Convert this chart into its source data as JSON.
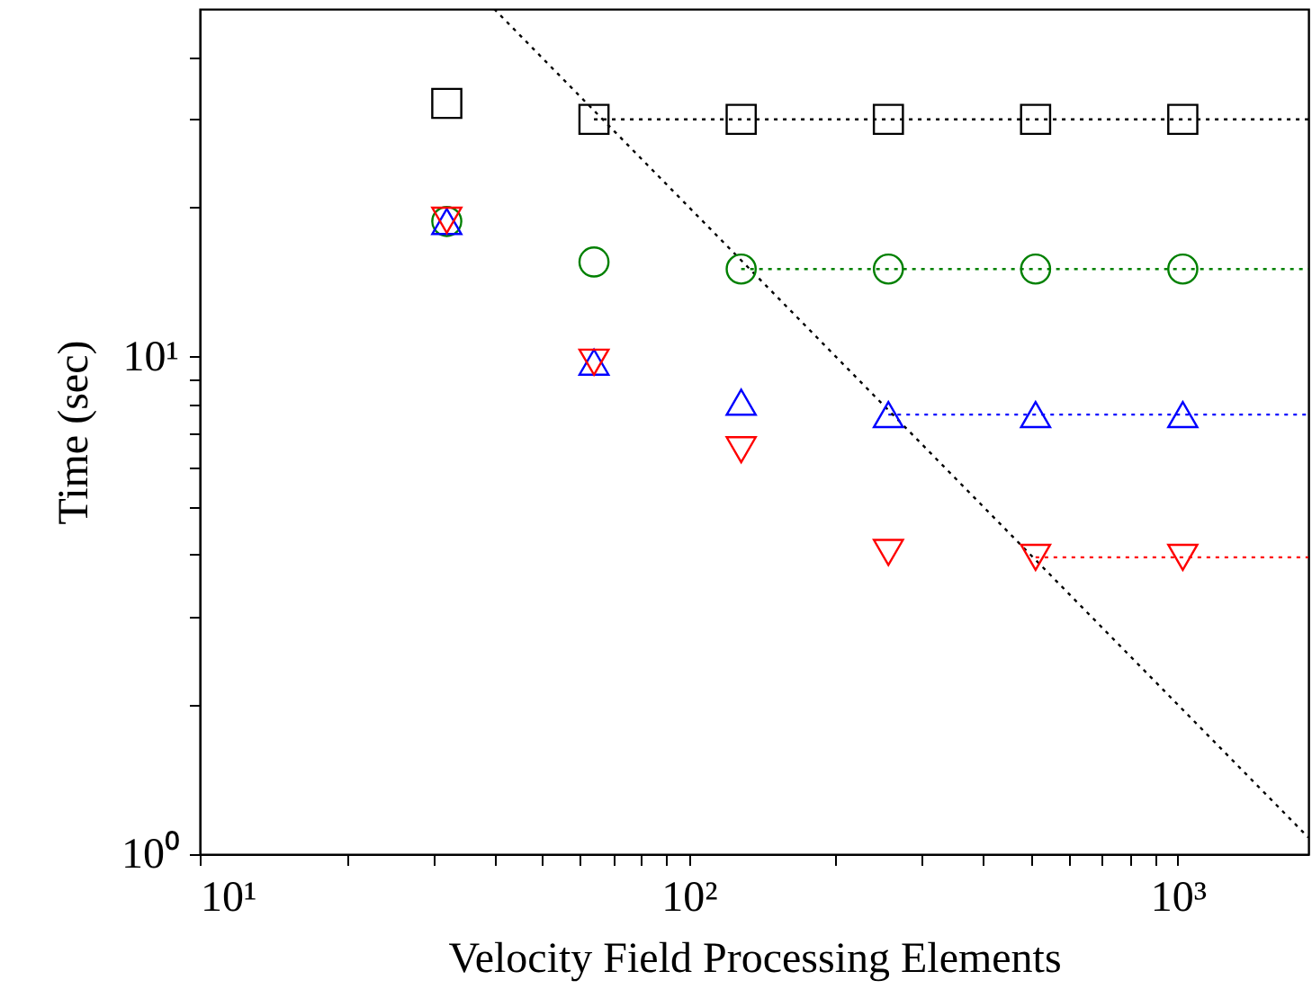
{
  "chart_data": {
    "type": "scatter",
    "xlabel": "Velocity Field Processing Elements",
    "ylabel": "Time (sec)",
    "log": "xy",
    "grid": false,
    "xlim": [
      10,
      1850
    ],
    "ylim": [
      1,
      50
    ],
    "xticks": [
      {
        "value": 10,
        "label": "10¹"
      },
      {
        "value": 20,
        "label": null
      },
      {
        "value": 30,
        "label": null
      },
      {
        "value": 40,
        "label": null
      },
      {
        "value": 50,
        "label": null
      },
      {
        "value": 60,
        "label": null
      },
      {
        "value": 70,
        "label": null
      },
      {
        "value": 80,
        "label": null
      },
      {
        "value": 90,
        "label": null
      },
      {
        "value": 100,
        "label": "10²"
      },
      {
        "value": 200,
        "label": null
      },
      {
        "value": 300,
        "label": null
      },
      {
        "value": 400,
        "label": null
      },
      {
        "value": 500,
        "label": null
      },
      {
        "value": 600,
        "label": null
      },
      {
        "value": 700,
        "label": null
      },
      {
        "value": 800,
        "label": null
      },
      {
        "value": 900,
        "label": null
      },
      {
        "value": 1000,
        "label": "10³"
      }
    ],
    "yticks": [
      {
        "value": 1,
        "label": "10⁰"
      },
      {
        "value": 2,
        "label": null
      },
      {
        "value": 3,
        "label": null
      },
      {
        "value": 4,
        "label": null
      },
      {
        "value": 5,
        "label": null
      },
      {
        "value": 6,
        "label": null
      },
      {
        "value": 7,
        "label": null
      },
      {
        "value": 8,
        "label": null
      },
      {
        "value": 9,
        "label": null
      },
      {
        "value": 10,
        "label": "10¹"
      },
      {
        "value": 20,
        "label": null
      },
      {
        "value": 30,
        "label": null
      },
      {
        "value": 40,
        "label": null
      }
    ],
    "series": [
      {
        "type": "line",
        "line_style": "dotted",
        "marker": "none",
        "color": "#000000",
        "x": [
          64,
          1850
        ],
        "values": [
          30,
          30
        ]
      },
      {
        "type": "line",
        "line_style": "dotted",
        "marker": "none",
        "color": "#008000",
        "x": [
          128,
          1850
        ],
        "values": [
          15,
          15
        ]
      },
      {
        "type": "line",
        "line_style": "dotted",
        "marker": "none",
        "color": "#0000ff",
        "x": [
          256,
          1850
        ],
        "values": [
          7.65,
          7.65
        ]
      },
      {
        "type": "line",
        "line_style": "dotted",
        "marker": "none",
        "color": "#ff0000",
        "x": [
          512,
          1850
        ],
        "values": [
          3.95,
          3.95
        ]
      },
      {
        "type": "line",
        "line_style": "dotted",
        "marker": "none",
        "color": "#000000",
        "x": [
          40,
          1850
        ],
        "values": [
          50,
          1.08
        ]
      },
      {
        "type": "scatter",
        "marker": "square",
        "color": "#000000",
        "x": [
          32,
          64,
          128,
          256,
          512,
          1024
        ],
        "values": [
          32.3,
          30,
          30,
          30,
          30,
          30
        ]
      },
      {
        "type": "scatter",
        "marker": "circle",
        "color": "#008000",
        "x": [
          32,
          64,
          128,
          256,
          512,
          1024
        ],
        "values": [
          18.7,
          15.5,
          15,
          15,
          15,
          15
        ]
      },
      {
        "type": "scatter",
        "marker": "triangle",
        "color": "#0000ff",
        "x": [
          32,
          64,
          128,
          256,
          512,
          1024
        ],
        "values": [
          18.7,
          9.75,
          8.1,
          7.65,
          7.65,
          7.65
        ]
      },
      {
        "type": "scatter",
        "marker": "triangle-down",
        "color": "#ff0000",
        "x": [
          32,
          64,
          128,
          256,
          512,
          1024
        ],
        "values": [
          18.8,
          9.75,
          6.5,
          4.04,
          3.95,
          3.95
        ]
      }
    ]
  }
}
